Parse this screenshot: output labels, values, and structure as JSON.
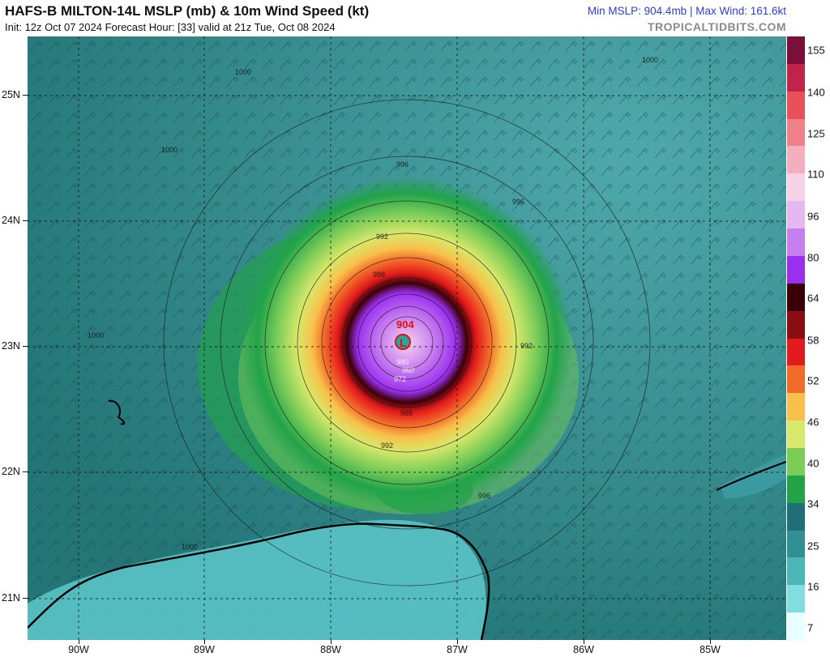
{
  "header": {
    "title": "HAFS-B MILTON-14L MSLP (mb) & 10m Wind Speed (kt)",
    "subtitle": "Init: 12z Oct 07 2024   Forecast Hour: [33]   valid at 21z Tue, Oct 08 2024",
    "stats": "Min MSLP: 904.4mb | Max Wind: 161.6kt",
    "brand": "TROPICALTIDBITS.COM"
  },
  "axes": {
    "lat_labels": [
      "25N",
      "24N",
      "23N",
      "22N",
      "21N"
    ],
    "lon_labels": [
      "90W",
      "89W",
      "88W",
      "87W",
      "86W",
      "85W"
    ]
  },
  "colorbar": {
    "labels": [
      "155",
      "140",
      "125",
      "110",
      "96",
      "80",
      "64",
      "58",
      "52",
      "46",
      "40",
      "34",
      "25",
      "16",
      "7"
    ],
    "colors": [
      "#7a0f3a",
      "#c3234a",
      "#e8505a",
      "#f0808a",
      "#f4aec0",
      "#f6d2e6",
      "#e6b8f2",
      "#c77ff0",
      "#9a2ff0",
      "#3a0008",
      "#8a0d14",
      "#e31a1c",
      "#f36b2a",
      "#f8c04a",
      "#d7e86a",
      "#7ccd58",
      "#22a34a",
      "#1f6f78",
      "#2f8f94",
      "#4bb5b8",
      "#82dde0",
      "#e8ffff"
    ]
  },
  "map": {
    "center_pressure": "904",
    "low_symbol": "L",
    "isobars": [
      "1000",
      "1000",
      "1000",
      "1000",
      "996",
      "996",
      "996",
      "992",
      "992",
      "992",
      "988",
      "988",
      "980",
      "972",
      "960",
      "1000"
    ]
  }
}
